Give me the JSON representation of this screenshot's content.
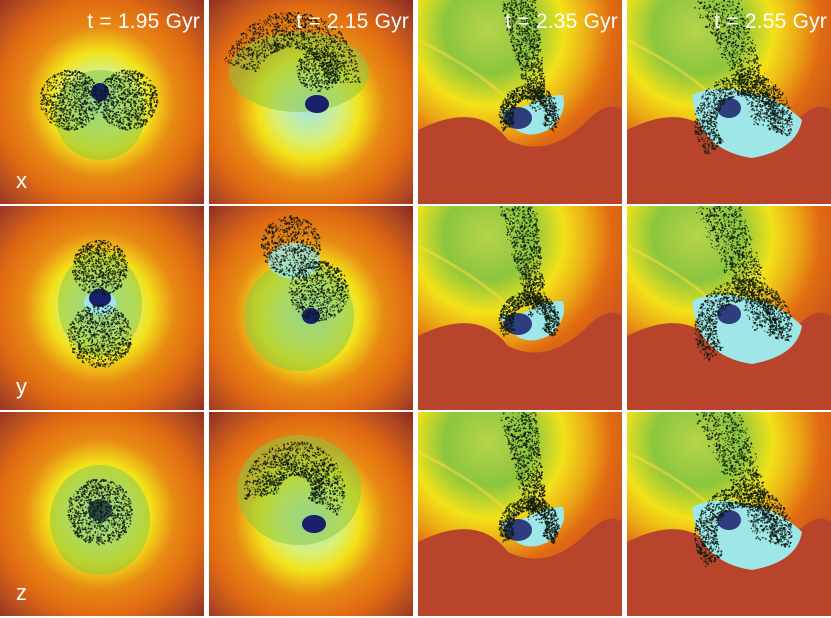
{
  "figure": {
    "columns": [
      {
        "time_label": "t = 1.95 Gyr"
      },
      {
        "time_label": "t = 2.15 Gyr"
      },
      {
        "time_label": "t = 2.35 Gyr"
      },
      {
        "time_label": "t = 2.55 Gyr"
      }
    ],
    "rows": [
      {
        "axis_label": "x"
      },
      {
        "axis_label": "y"
      },
      {
        "axis_label": "z"
      }
    ]
  },
  "colors": {
    "dark_red": "#8a2a1e",
    "red": "#b8452b",
    "orange": "#e06a12",
    "yellow": "#f2e21a",
    "green": "#8cc63f",
    "cyan": "#9fe6e8",
    "core": "#1a1f6a",
    "stars": "#0c1a10"
  }
}
